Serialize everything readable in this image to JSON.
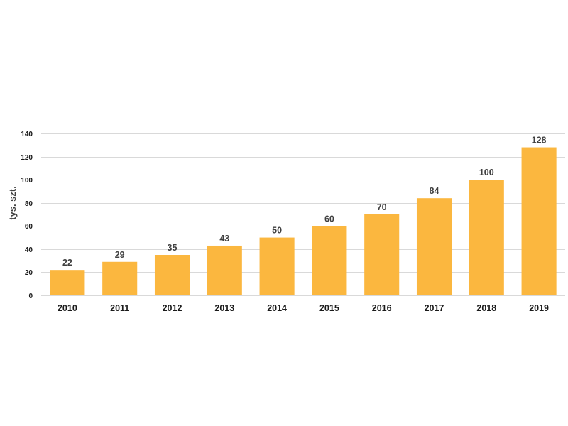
{
  "chart_data": {
    "type": "bar",
    "title": "",
    "xlabel": "",
    "ylabel": "tys. szt.",
    "categories": [
      "2010",
      "2011",
      "2012",
      "2013",
      "2014",
      "2015",
      "2016",
      "2017",
      "2018",
      "2019"
    ],
    "values": [
      22,
      29,
      35,
      43,
      50,
      60,
      70,
      84,
      100,
      128
    ],
    "ylim": [
      0,
      140
    ],
    "yticks": [
      "0",
      "20",
      "40",
      "60",
      "80",
      "100",
      "120",
      "140"
    ],
    "grid": true,
    "legend": "none",
    "bar_color": "#fbb73f"
  }
}
